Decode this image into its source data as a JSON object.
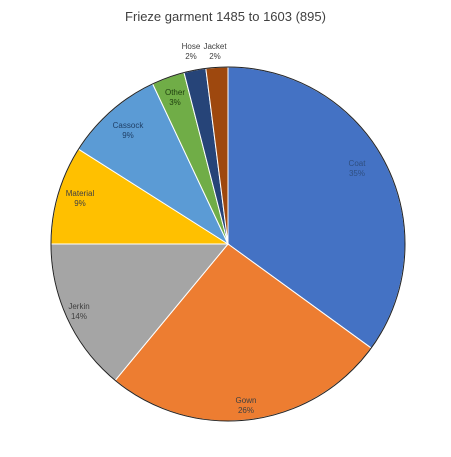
{
  "chart_data": {
    "type": "pie",
    "title": "Frieze garment 1485 to 1603 (895)",
    "slices": [
      {
        "label": "Coat",
        "value": 35,
        "display": "35%",
        "color": "#4472C4",
        "label_color": "#2f4f80"
      },
      {
        "label": "Gown",
        "value": 26,
        "display": "26%",
        "color": "#ED7D31",
        "label_color": "#404040"
      },
      {
        "label": "Jerkin",
        "value": 14,
        "display": "14%",
        "color": "#A5A5A5",
        "label_color": "#404040"
      },
      {
        "label": "Material",
        "value": 9,
        "display": "9%",
        "color": "#FFC000",
        "label_color": "#404040"
      },
      {
        "label": "Cassock",
        "value": 9,
        "display": "9%",
        "color": "#5B9BD5",
        "label_color": "#1f3f66"
      },
      {
        "label": "Other",
        "value": 3,
        "display": "3%",
        "color": "#70AD47",
        "label_color": "#204010"
      },
      {
        "label": "Hose",
        "value": 2,
        "display": "2%",
        "color": "#264478",
        "label_color": "#404040"
      },
      {
        "label": "Jacket",
        "value": 2,
        "display": "2%",
        "color": "#9E480E",
        "label_color": "#404040"
      }
    ],
    "legend": "none"
  }
}
